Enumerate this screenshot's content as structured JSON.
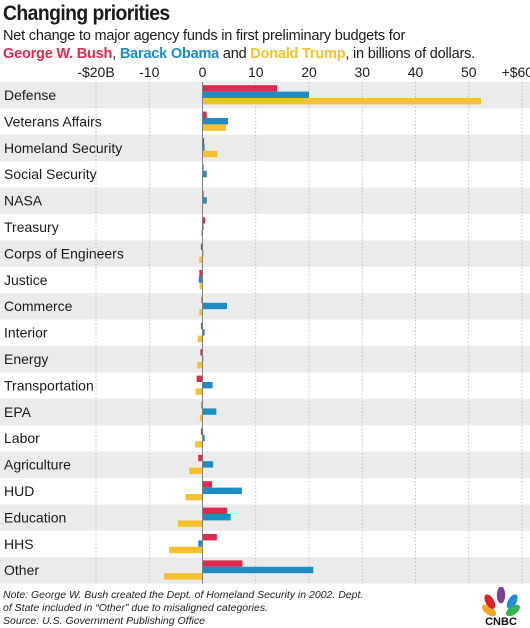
{
  "header": {
    "title": "Changing priorities",
    "subtitle_line1": "Net change to major agency funds in first preliminary budgets for",
    "president_bush": "George W. Bush",
    "sep_comma": ", ",
    "president_obama": "Barack Obama",
    "sep_and": " and ",
    "president_trump": "Donald Trump",
    "subtitle_tail": ", in billions of dollars."
  },
  "colors": {
    "bush": "#e0294e",
    "obama": "#1f8dc4",
    "trump": "#f7c12e",
    "stripe": "#ebebeb"
  },
  "footnote": {
    "line1": "Note: George W. Bush created the Dept. of Homeland Security in 2002. Dept.",
    "line2": "of State included in “Other” due to misaligned categories.",
    "line3": "Source: U.S. Government Publishing Office"
  },
  "logo": {
    "text": "CNBC",
    "icon": "peacock-icon"
  },
  "chart_data": {
    "type": "bar",
    "orientation": "horizontal",
    "xlim": [
      -20,
      60
    ],
    "tick_values": [
      -20,
      -10,
      0,
      10,
      20,
      30,
      40,
      50,
      60
    ],
    "tick_labels": [
      "-$20B",
      "-10",
      "0",
      "10",
      "20",
      "30",
      "40",
      "50",
      "+$60B"
    ],
    "grid": true,
    "categories": [
      "Defense",
      "Veterans Affairs",
      "Homeland Security",
      "Social Security",
      "NASA",
      "Treasury",
      "Corps of Engineers",
      "Justice",
      "Commerce",
      "Interior",
      "Energy",
      "Transportation",
      "EPA",
      "Labor",
      "Agriculture",
      "HUD",
      "Education",
      "HHS",
      "Other"
    ],
    "series": [
      {
        "name": "George W. Bush",
        "values": [
          14,
          0.8,
          0.3,
          0.2,
          0.2,
          0.5,
          -0.3,
          -0.6,
          -0.2,
          -0.3,
          -0.4,
          -1.1,
          -0.2,
          -0.3,
          -0.8,
          1.8,
          4.6,
          2.7,
          7.5
        ]
      },
      {
        "name": "Barack Obama",
        "values": [
          20,
          4.8,
          0.4,
          0.8,
          0.8,
          0.2,
          0.1,
          -0.7,
          4.6,
          0.4,
          0.1,
          1.9,
          2.6,
          0.4,
          2.0,
          7.4,
          5.3,
          -0.8,
          20.8
        ]
      },
      {
        "name": "Donald Trump",
        "values": [
          52.3,
          4.4,
          2.8,
          0,
          -0.1,
          -0.3,
          -0.6,
          -0.5,
          -0.6,
          -0.9,
          -1.0,
          -1.3,
          -0.5,
          -1.4,
          -2.5,
          -3.2,
          -4.6,
          -6.3,
          -7.2
        ]
      }
    ]
  }
}
